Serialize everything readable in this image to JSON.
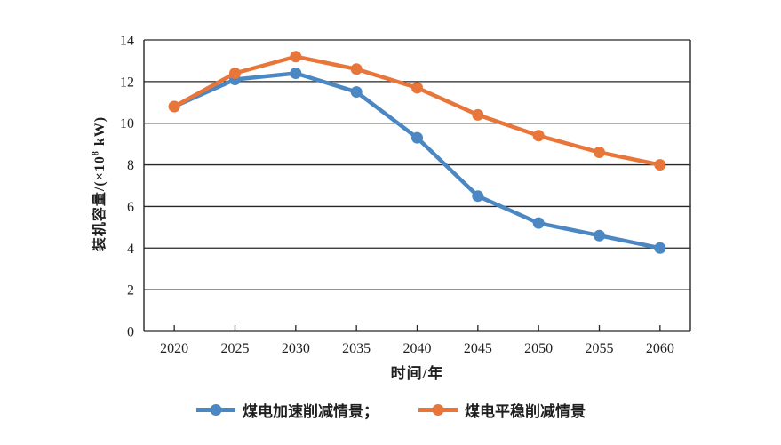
{
  "colors": {
    "background": "#ffffff",
    "axis": "#262626",
    "text": "#1f1f1f",
    "series_blue": "#4B87C3",
    "series_orange": "#E8763B"
  },
  "chart_data": {
    "type": "line",
    "title": "",
    "xlabel": "时间/年",
    "ylabel": "装机容量/(×10⁸ kW)",
    "ylabel_parts": {
      "prefix": "装机容量/(×10",
      "sup": "8",
      "suffix": " kW)"
    },
    "categories": [
      "2020",
      "2025",
      "2030",
      "2035",
      "2040",
      "2045",
      "2050",
      "2055",
      "2060"
    ],
    "yticks": [
      "0",
      "2",
      "4",
      "6",
      "8",
      "10",
      "12",
      "14"
    ],
    "ylim": [
      0,
      14
    ],
    "grid": "horizontal",
    "legend_position": "bottom",
    "marker": "circle",
    "series": [
      {
        "name": "煤电加速削减情景",
        "label": "煤电加速削减情景；",
        "color": "#4B87C3",
        "values": [
          10.8,
          12.1,
          12.4,
          11.5,
          9.3,
          6.5,
          5.2,
          4.6,
          4.0
        ]
      },
      {
        "name": "煤电平稳削减情景",
        "label": "煤电平稳削减情景",
        "color": "#E8763B",
        "values": [
          10.8,
          12.4,
          13.2,
          12.6,
          11.7,
          10.4,
          9.4,
          8.6,
          8.0
        ]
      }
    ]
  }
}
